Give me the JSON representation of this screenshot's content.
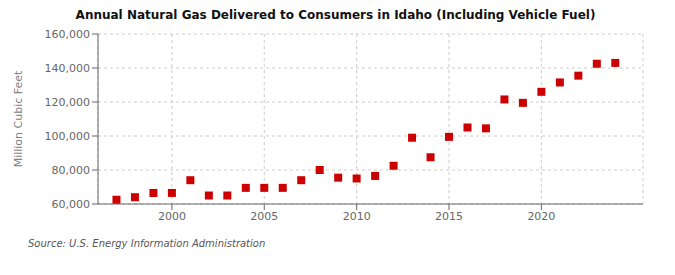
{
  "chart_data": {
    "type": "scatter",
    "title": "Annual Natural Gas Delivered to Consumers in Idaho (Including Vehicle Fuel)",
    "ylabel": "Million Cubic Feet",
    "source": "Source: U.S. Energy Information Administration",
    "color": "#cc0000",
    "marker": "square",
    "grid": true,
    "x": [
      1997,
      1998,
      1999,
      2000,
      2001,
      2002,
      2003,
      2004,
      2005,
      2006,
      2007,
      2008,
      2009,
      2010,
      2011,
      2012,
      2013,
      2014,
      2015,
      2016,
      2017,
      2018,
      2019,
      2020,
      2021,
      2022,
      2023,
      2024
    ],
    "values": [
      62500,
      64000,
      66500,
      66500,
      74000,
      65000,
      65000,
      69500,
      69500,
      69500,
      74000,
      80000,
      75500,
      75000,
      76500,
      82500,
      99000,
      87500,
      99500,
      105000,
      104500,
      121500,
      119500,
      126000,
      131500,
      135500,
      142500,
      143000
    ],
    "xlim": [
      1996.0,
      2025.5
    ],
    "xticks": [
      2000,
      2005,
      2010,
      2015,
      2020
    ],
    "ylim": [
      60000,
      160000
    ],
    "yticks": [
      {
        "value": 60000,
        "label": "60,000"
      },
      {
        "value": 80000,
        "label": "80,000"
      },
      {
        "value": 100000,
        "label": "100,000"
      },
      {
        "value": 120000,
        "label": "120,000"
      },
      {
        "value": 140000,
        "label": "140,000"
      },
      {
        "value": 160000,
        "label": "160,000"
      }
    ]
  }
}
